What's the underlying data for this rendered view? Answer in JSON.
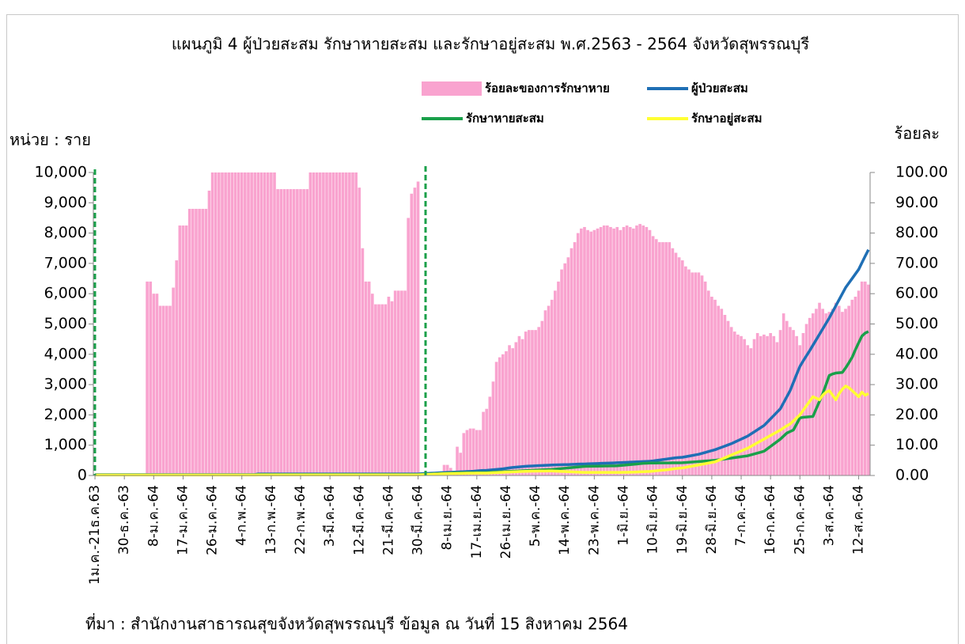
{
  "chart_data": {
    "type": "combo",
    "title": "แผนภูมิ 4 ผู้ป่วยสะสม รักษาหายสะสม และรักษาอยู่สะสม พ.ศ.2563 - 2564 จังหวัดสุพรรณบุรี",
    "y_label": "หน่วย : ราย",
    "y2_label": "ร้อยละ",
    "source": "ที่มา : สำนักงานสาธารณสุขจังหวัดสุพรรณบุรี ข้อมูล ณ วันที่ 15 สิงหาคม 2564",
    "grid": false,
    "ylim": [
      0,
      10000
    ],
    "yticks": [
      0,
      {
        "value": 1000,
        "label": "1,000"
      },
      {
        "value": 2000,
        "label": "2,000"
      },
      {
        "value": 3000,
        "label": "3,000"
      },
      {
        "value": 4000,
        "label": "4,000"
      },
      {
        "value": 5000,
        "label": "5,000"
      },
      {
        "value": 6000,
        "label": "6,000"
      },
      {
        "value": 7000,
        "label": "7,000"
      },
      {
        "value": 8000,
        "label": "8,000"
      },
      {
        "value": 9000,
        "label": "9,000"
      },
      {
        "value": 10000,
        "label": "10,000"
      }
    ],
    "y2lim": [
      0,
      100
    ],
    "y2ticks": [
      {
        "value": 0,
        "label": "0.00"
      },
      {
        "value": 10,
        "label": "10.00"
      },
      {
        "value": 20,
        "label": "20.00"
      },
      {
        "value": 30,
        "label": "30.00"
      },
      {
        "value": 40,
        "label": "40.00"
      },
      {
        "value": 50,
        "label": "50.00"
      },
      {
        "value": 60,
        "label": "60.00"
      },
      {
        "value": 70,
        "label": "70.00"
      },
      {
        "value": 80,
        "label": "80.00"
      },
      {
        "value": 90,
        "label": "90.00"
      },
      {
        "value": 100,
        "label": "100.00"
      }
    ],
    "categories": [
      "1ม.ค.-21ธ.ค.63",
      null,
      null,
      null,
      null,
      null,
      null,
      null,
      null,
      "30-ธ.ค.-63",
      null,
      null,
      null,
      null,
      null,
      null,
      null,
      null,
      "8-ม.ค.-64",
      null,
      null,
      null,
      null,
      null,
      null,
      null,
      null,
      "17-ม.ค.-64",
      null,
      null,
      null,
      null,
      null,
      null,
      null,
      null,
      "26-ม.ค.-64",
      null,
      null,
      null,
      null,
      null,
      null,
      null,
      null,
      "4-ก.พ.-64",
      null,
      null,
      null,
      null,
      null,
      null,
      null,
      null,
      "13-ก.พ.-64",
      null,
      null,
      null,
      null,
      null,
      null,
      null,
      null,
      "22-ก.พ.-64",
      null,
      null,
      null,
      null,
      null,
      null,
      null,
      null,
      "3-มี.ค.-64",
      null,
      null,
      null,
      null,
      null,
      null,
      null,
      null,
      "12-มี.ค.-64",
      null,
      null,
      null,
      null,
      null,
      null,
      null,
      null,
      "21-มี.ค.-64",
      null,
      null,
      null,
      null,
      null,
      null,
      null,
      null,
      "30-มี.ค.-64",
      null,
      null,
      null,
      null,
      null,
      null,
      null,
      null,
      "8-เม.ย.-64",
      null,
      null,
      null,
      null,
      null,
      null,
      null,
      null,
      "17-เม.ย.-64",
      null,
      null,
      null,
      null,
      null,
      null,
      null,
      null,
      "26-เม.ย.-64",
      null,
      null,
      null,
      null,
      null,
      null,
      null,
      null,
      "5-พ.ค.-64",
      null,
      null,
      null,
      null,
      null,
      null,
      null,
      null,
      "14-พ.ค.-64",
      null,
      null,
      null,
      null,
      null,
      null,
      null,
      null,
      "23-พ.ค.-64",
      null,
      null,
      null,
      null,
      null,
      null,
      null,
      null,
      "1-มิ.ย.-64",
      null,
      null,
      null,
      null,
      null,
      null,
      null,
      null,
      "10-มิ.ย.-64",
      null,
      null,
      null,
      null,
      null,
      null,
      null,
      null,
      "19-มิ.ย.-64",
      null,
      null,
      null,
      null,
      null,
      null,
      null,
      null,
      "28-มิ.ย.-64",
      null,
      null,
      null,
      null,
      null,
      null,
      null,
      null,
      "7-ก.ค.-64",
      null,
      null,
      null,
      null,
      null,
      null,
      null,
      null,
      "16-ก.ค.-64",
      null,
      null,
      null,
      null,
      null,
      null,
      null,
      null,
      "25-ก.ค.-64",
      null,
      null,
      null,
      null,
      null,
      null,
      null,
      null,
      "3-ส.ค.-64",
      null,
      null,
      null,
      null,
      null,
      null,
      null,
      null,
      "12-ส.ค.-64",
      null,
      null,
      null
    ],
    "series": [
      {
        "name": "ร้อยละของการรักษาหาย",
        "type": "bar",
        "axis": "y2",
        "color": "#f9a3cf",
        "values": [
          0,
          0,
          0,
          0,
          0,
          0,
          0,
          0,
          0,
          0,
          0,
          0,
          0,
          0,
          0,
          0,
          64,
          64,
          60,
          60,
          56,
          56,
          56,
          56,
          62,
          71,
          82.5,
          82.5,
          82.5,
          88,
          88,
          88,
          88,
          88,
          88,
          94,
          100,
          100,
          100,
          100,
          100,
          100,
          100,
          100,
          100,
          100,
          100,
          100,
          100,
          100,
          100,
          100,
          100,
          100,
          100,
          100,
          94.5,
          94.5,
          94.5,
          94.5,
          94.5,
          94.5,
          94.5,
          94.5,
          94.5,
          94.5,
          100,
          100,
          100,
          100,
          100,
          100,
          100,
          100,
          100,
          100,
          100,
          100,
          100,
          100,
          100,
          95,
          75,
          64,
          64,
          60,
          56.5,
          56.5,
          56.5,
          56.5,
          59,
          57.5,
          61,
          61,
          61,
          61,
          85,
          93,
          95,
          97,
          0,
          0,
          0,
          0,
          0,
          0,
          0,
          3.5,
          3.5,
          2.5,
          1.5,
          9.5,
          7.5,
          14,
          15,
          15.5,
          15.5,
          15,
          15,
          21,
          22,
          26,
          31,
          37.5,
          39,
          40,
          41,
          43,
          42,
          44,
          46,
          45,
          47.5,
          48,
          48,
          48,
          49,
          51,
          54.5,
          56,
          58,
          61,
          64,
          68,
          70,
          72,
          75,
          77,
          80,
          81.5,
          82,
          81,
          80.5,
          81,
          81.5,
          82,
          82.5,
          82.5,
          82,
          81.5,
          82,
          81,
          82,
          82.5,
          82,
          81.5,
          82.5,
          83,
          82.5,
          82,
          81,
          79,
          78,
          77,
          77,
          77,
          77,
          75,
          73.5,
          72,
          71,
          69,
          68,
          67,
          67,
          67,
          66,
          64,
          61,
          59,
          58,
          56,
          55,
          53,
          51,
          49,
          47.5,
          46.5,
          46,
          45,
          43,
          42,
          45,
          47,
          46,
          46.5,
          46,
          47,
          46,
          44,
          48,
          53.5,
          51,
          49,
          48,
          46,
          43,
          47,
          50,
          52,
          53.5,
          55,
          57,
          55,
          53.5,
          54,
          55,
          57,
          56,
          54,
          55,
          56,
          58,
          59,
          61,
          64,
          64,
          63
        ]
      },
      {
        "name": "ผู้ป่วยสะสม",
        "type": "line",
        "color": "#1f6fb5",
        "values": [
          30,
          30,
          30,
          30,
          30,
          30,
          30,
          30,
          30,
          30,
          30,
          30,
          30,
          30,
          30,
          30,
          30,
          30,
          30,
          30,
          30,
          30,
          30,
          30,
          30,
          30,
          30,
          30,
          30,
          30,
          30,
          30,
          30,
          30,
          30,
          30,
          30,
          30,
          30,
          30,
          30,
          30,
          30,
          30,
          30,
          30,
          30,
          30,
          30,
          30,
          50,
          50,
          50,
          50,
          50,
          50,
          50,
          50,
          50,
          50,
          50,
          50,
          50,
          50,
          50,
          50,
          50,
          50,
          50,
          50,
          50,
          50,
          50,
          50,
          50,
          50,
          50,
          50,
          50,
          50,
          50,
          50,
          50,
          50,
          50,
          50,
          50,
          50,
          50,
          50,
          50,
          50,
          50,
          50,
          50,
          50,
          50,
          50,
          50,
          50,
          60,
          65,
          70,
          75,
          80,
          85,
          90,
          95,
          100,
          105,
          110,
          115,
          120,
          125,
          130,
          135,
          140,
          150,
          160,
          165,
          170,
          180,
          190,
          200,
          210,
          220,
          235,
          250,
          265,
          275,
          285,
          295,
          305,
          310,
          315,
          320,
          325,
          330,
          335,
          340,
          345,
          350,
          352,
          355,
          358,
          360,
          365,
          370,
          375,
          378,
          380,
          384,
          388,
          392,
          396,
          400,
          404,
          408,
          412,
          416,
          420,
          425,
          430,
          435,
          440,
          445,
          450,
          455,
          460,
          465,
          470,
          480,
          495,
          510,
          525,
          540,
          555,
          570,
          585,
          595,
          600,
          620,
          640,
          660,
          680,
          700,
          730,
          760,
          790,
          820,
          850,
          890,
          930,
          970,
          1010,
          1050,
          1100,
          1150,
          1200,
          1250,
          1300,
          1370,
          1440,
          1510,
          1580,
          1650,
          1760,
          1870,
          1980,
          2090,
          2200,
          2400,
          2600,
          2800,
          3070,
          3340,
          3600,
          3780,
          3950,
          4120,
          4300,
          4480,
          4660,
          4840,
          5020,
          5200,
          5400,
          5600,
          5800,
          6000,
          6200,
          6350,
          6500,
          6650,
          6800,
          7020,
          7240,
          7450
        ]
      },
      {
        "name": "รักษาหายสะสม",
        "type": "line",
        "color": "#1aa04a",
        "values": [
          20,
          20,
          20,
          20,
          20,
          20,
          20,
          20,
          20,
          20,
          20,
          20,
          20,
          20,
          20,
          20,
          20,
          20,
          20,
          20,
          20,
          20,
          20,
          20,
          20,
          20,
          20,
          20,
          20,
          20,
          20,
          20,
          20,
          20,
          20,
          20,
          20,
          20,
          20,
          20,
          20,
          20,
          20,
          20,
          20,
          20,
          20,
          20,
          20,
          20,
          30,
          30,
          30,
          30,
          30,
          30,
          30,
          30,
          30,
          30,
          30,
          30,
          30,
          30,
          30,
          30,
          30,
          30,
          30,
          30,
          30,
          30,
          30,
          30,
          30,
          30,
          30,
          30,
          30,
          30,
          30,
          30,
          30,
          30,
          30,
          30,
          30,
          30,
          30,
          30,
          30,
          30,
          30,
          30,
          30,
          30,
          30,
          30,
          30,
          30,
          35,
          40,
          45,
          50,
          55,
          60,
          65,
          70,
          75,
          80,
          85,
          88,
          90,
          92,
          94,
          95,
          96,
          97,
          98,
          99,
          100,
          105,
          110,
          115,
          120,
          125,
          130,
          135,
          140,
          145,
          150,
          155,
          160,
          165,
          170,
          175,
          180,
          185,
          190,
          195,
          200,
          210,
          220,
          230,
          240,
          250,
          260,
          270,
          280,
          290,
          300,
          302,
          304,
          306,
          308,
          310,
          312,
          314,
          316,
          318,
          320,
          330,
          340,
          350,
          360,
          370,
          380,
          390,
          400,
          405,
          410,
          411,
          412,
          413,
          414,
          415,
          416,
          417,
          418,
          419,
          420,
          428,
          436,
          444,
          452,
          460,
          468,
          476,
          484,
          492,
          500,
          515,
          530,
          545,
          560,
          575,
          590,
          605,
          620,
          635,
          650,
          680,
          710,
          740,
          770,
          800,
          880,
          960,
          1040,
          1120,
          1200,
          1300,
          1400,
          1450,
          1500,
          1700,
          1900,
          1920,
          1930,
          1940,
          1950,
          2200,
          2450,
          2700,
          3000,
          3300,
          3350,
          3380,
          3390,
          3400,
          3550,
          3720,
          3900,
          4150,
          4380,
          4600,
          4700,
          4750
        ]
      },
      {
        "name": "รักษาอยู่สะสม",
        "type": "line",
        "color": "#ffff33",
        "values": [
          15,
          15,
          15,
          15,
          15,
          15,
          15,
          15,
          15,
          15,
          15,
          15,
          15,
          15,
          15,
          15,
          15,
          15,
          15,
          15,
          15,
          15,
          15,
          15,
          15,
          15,
          15,
          15,
          15,
          15,
          15,
          15,
          15,
          15,
          15,
          15,
          15,
          15,
          15,
          15,
          15,
          15,
          15,
          15,
          15,
          15,
          15,
          15,
          15,
          15,
          20,
          20,
          20,
          20,
          20,
          20,
          20,
          20,
          20,
          20,
          20,
          20,
          20,
          20,
          20,
          20,
          20,
          20,
          20,
          20,
          20,
          20,
          20,
          20,
          20,
          20,
          20,
          20,
          20,
          20,
          20,
          20,
          20,
          20,
          20,
          20,
          20,
          20,
          20,
          20,
          20,
          20,
          20,
          20,
          20,
          20,
          20,
          20,
          20,
          20,
          25,
          30,
          35,
          40,
          45,
          50,
          55,
          60,
          62,
          64,
          66,
          68,
          70,
          72,
          74,
          75,
          76,
          77,
          78,
          79,
          80,
          85,
          90,
          95,
          100,
          105,
          110,
          115,
          120,
          125,
          130,
          133,
          136,
          139,
          142,
          145,
          146,
          147,
          148,
          149,
          150,
          145,
          140,
          135,
          130,
          125,
          120,
          115,
          110,
          105,
          100,
          100,
          100,
          100,
          100,
          100,
          100,
          100,
          100,
          100,
          100,
          102,
          104,
          106,
          108,
          110,
          115,
          120,
          125,
          130,
          135,
          145,
          155,
          165,
          175,
          185,
          200,
          215,
          230,
          240,
          250,
          270,
          290,
          310,
          330,
          350,
          370,
          390,
          410,
          430,
          450,
          495,
          540,
          585,
          630,
          675,
          720,
          765,
          810,
          855,
          900,
          960,
          1020,
          1080,
          1140,
          1200,
          1260,
          1320,
          1380,
          1440,
          1500,
          1570,
          1640,
          1700,
          1800,
          1900,
          2000,
          2150,
          2300,
          2450,
          2600,
          2550,
          2500,
          2650,
          2750,
          2800,
          2650,
          2500,
          2700,
          2850,
          2950,
          2900,
          2800,
          2700,
          2600,
          2750,
          2650,
          2700
        ]
      }
    ]
  }
}
